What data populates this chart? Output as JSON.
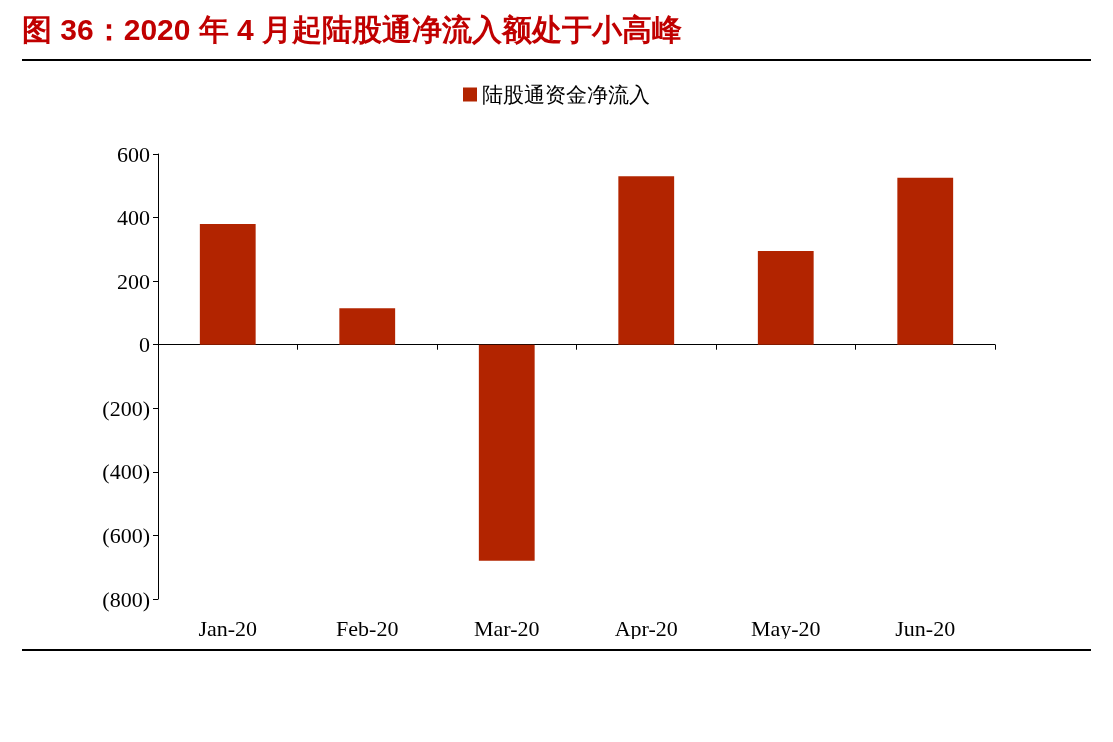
{
  "chart_data": {
    "type": "bar",
    "title": "图 36：2020 年 4 月起陆股通净流入额处于小高峰",
    "categories": [
      "Jan-20",
      "Feb-20",
      "Mar-20",
      "Apr-20",
      "May-20",
      "Jun-20"
    ],
    "series": [
      {
        "name": "陆股通资金净流入",
        "color": "#b22400",
        "values": [
          380,
          115,
          -680,
          530,
          295,
          525
        ]
      }
    ],
    "ylim": [
      -800,
      600
    ],
    "yticks": [
      {
        "value": -800,
        "label": "(800)"
      },
      {
        "value": -600,
        "label": "(600)"
      },
      {
        "value": -400,
        "label": "(400)"
      },
      {
        "value": -200,
        "label": "(200)"
      },
      0,
      200,
      400,
      600
    ],
    "legend": "top"
  }
}
